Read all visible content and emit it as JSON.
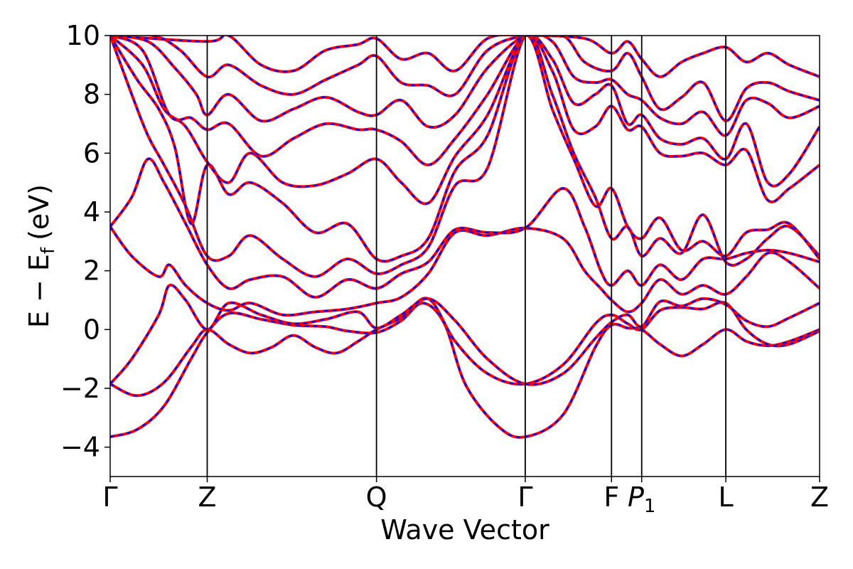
{
  "chart_data": {
    "type": "line",
    "title": "",
    "xlabel": "Wave Vector",
    "ylabel": "E − E",
    "ylabel_subscript": "f",
    "ylabel_unit": "(eV)",
    "ylim": [
      -5,
      10
    ],
    "yticks": [
      -4,
      -2,
      0,
      2,
      4,
      6,
      8,
      10
    ],
    "ytick_labels": [
      "−4",
      "−2",
      "0",
      "2",
      "4",
      "6",
      "8",
      "10"
    ],
    "xlim": [
      0,
      6.58
    ],
    "kpoints": [
      {
        "label": "Γ",
        "sub": "",
        "x": 0.0
      },
      {
        "label": "Z",
        "sub": "",
        "x": 0.9
      },
      {
        "label": "Q",
        "sub": "",
        "x": 2.47
      },
      {
        "label": "Γ",
        "sub": "",
        "x": 3.85
      },
      {
        "label": "F",
        "sub": "",
        "x": 4.65
      },
      {
        "label": "P",
        "sub": "1",
        "x": 4.93
      },
      {
        "label": "L",
        "sub": "",
        "x": 5.71
      },
      {
        "label": "Z",
        "sub": "",
        "x": 6.58
      }
    ],
    "legend": "none",
    "grid": false,
    "series_styles": [
      {
        "color": "#ff0000",
        "style": "solid"
      },
      {
        "color": "#0000ff",
        "style": "dashed"
      }
    ],
    "bands": [
      [
        [
          0,
          -3.65
        ],
        [
          0.25,
          -3.4
        ],
        [
          0.5,
          -2.6
        ],
        [
          0.75,
          -1.0
        ],
        [
          0.9,
          -0.1
        ],
        [
          1.1,
          0.55
        ],
        [
          1.4,
          0.35
        ],
        [
          1.7,
          0.15
        ],
        [
          2.0,
          0.1
        ],
        [
          2.2,
          -0.05
        ],
        [
          2.47,
          -0.1
        ],
        [
          2.7,
          0.3
        ],
        [
          2.9,
          0.9
        ],
        [
          3.1,
          0.2
        ],
        [
          3.3,
          -1.9
        ],
        [
          3.6,
          -3.3
        ],
        [
          3.85,
          -3.65
        ],
        [
          4.2,
          -2.9
        ],
        [
          4.5,
          -0.6
        ],
        [
          4.65,
          0.15
        ],
        [
          4.8,
          0.05
        ],
        [
          4.93,
          0.0
        ],
        [
          5.1,
          -0.5
        ],
        [
          5.3,
          -0.9
        ],
        [
          5.5,
          -0.5
        ],
        [
          5.71,
          0.0
        ],
        [
          5.9,
          -0.4
        ],
        [
          6.1,
          -0.55
        ],
        [
          6.3,
          -0.4
        ],
        [
          6.58,
          0.0
        ]
      ],
      [
        [
          0,
          -1.85
        ],
        [
          0.25,
          -2.25
        ],
        [
          0.5,
          -1.8
        ],
        [
          0.75,
          -0.6
        ],
        [
          0.9,
          0.0
        ],
        [
          1.1,
          -0.5
        ],
        [
          1.3,
          -0.8
        ],
        [
          1.5,
          -0.6
        ],
        [
          1.7,
          -0.2
        ],
        [
          1.9,
          -0.6
        ],
        [
          2.1,
          -0.8
        ],
        [
          2.3,
          -0.4
        ],
        [
          2.47,
          0.0
        ],
        [
          2.7,
          0.4
        ],
        [
          2.95,
          1.05
        ],
        [
          3.2,
          -0.4
        ],
        [
          3.5,
          -1.5
        ],
        [
          3.85,
          -1.85
        ],
        [
          4.2,
          -1.2
        ],
        [
          4.5,
          0.2
        ],
        [
          4.65,
          0.5
        ],
        [
          4.8,
          0.2
        ],
        [
          4.93,
          0.0
        ],
        [
          5.1,
          0.65
        ],
        [
          5.3,
          0.75
        ],
        [
          5.5,
          0.7
        ],
        [
          5.71,
          0.9
        ],
        [
          5.9,
          0.0
        ],
        [
          6.1,
          -0.5
        ],
        [
          6.3,
          -0.5
        ],
        [
          6.58,
          -0.05
        ]
      ],
      [
        [
          0,
          -1.85
        ],
        [
          0.2,
          -1.0
        ],
        [
          0.45,
          0.5
        ],
        [
          0.55,
          1.5
        ],
        [
          0.7,
          1.0
        ],
        [
          0.9,
          0.0
        ],
        [
          1.1,
          0.9
        ],
        [
          1.4,
          0.5
        ],
        [
          1.7,
          0.2
        ],
        [
          2.0,
          0.35
        ],
        [
          2.3,
          0.6
        ],
        [
          2.47,
          0.05
        ],
        [
          2.7,
          0.5
        ],
        [
          2.95,
          1.05
        ],
        [
          3.2,
          0.3
        ],
        [
          3.5,
          -1.0
        ],
        [
          3.85,
          -1.85
        ],
        [
          4.2,
          -1.5
        ],
        [
          4.5,
          -0.3
        ],
        [
          4.65,
          0.25
        ],
        [
          4.8,
          0.5
        ],
        [
          4.93,
          0.1
        ],
        [
          5.1,
          0.95
        ],
        [
          5.3,
          0.8
        ],
        [
          5.5,
          1.05
        ],
        [
          5.71,
          0.85
        ],
        [
          5.9,
          0.3
        ],
        [
          6.1,
          0.1
        ],
        [
          6.3,
          0.4
        ],
        [
          6.58,
          0.9
        ]
      ],
      [
        [
          0,
          3.5
        ],
        [
          0.2,
          2.5
        ],
        [
          0.45,
          1.8
        ],
        [
          0.55,
          2.2
        ],
        [
          0.7,
          1.5
        ],
        [
          0.9,
          0.9
        ],
        [
          1.1,
          0.65
        ],
        [
          1.3,
          0.9
        ],
        [
          1.6,
          0.5
        ],
        [
          1.9,
          0.6
        ],
        [
          2.2,
          0.7
        ],
        [
          2.47,
          0.9
        ],
        [
          2.7,
          1.1
        ],
        [
          2.95,
          1.9
        ],
        [
          3.2,
          3.3
        ],
        [
          3.5,
          3.2
        ],
        [
          3.85,
          3.45
        ],
        [
          4.2,
          3.1
        ],
        [
          4.4,
          2.0
        ],
        [
          4.55,
          1.4
        ],
        [
          4.65,
          1.0
        ],
        [
          4.8,
          0.6
        ],
        [
          4.93,
          0.9
        ],
        [
          5.1,
          1.7
        ],
        [
          5.3,
          1.2
        ],
        [
          5.5,
          1.5
        ],
        [
          5.71,
          1.2
        ],
        [
          5.9,
          1.8
        ],
        [
          6.1,
          2.6
        ],
        [
          6.3,
          2.3
        ],
        [
          6.58,
          1.4
        ]
      ],
      [
        [
          0,
          3.5
        ],
        [
          0.2,
          4.5
        ],
        [
          0.35,
          5.8
        ],
        [
          0.5,
          5.0
        ],
        [
          0.7,
          3.6
        ],
        [
          0.9,
          2.2
        ],
        [
          1.1,
          1.4
        ],
        [
          1.3,
          1.7
        ],
        [
          1.6,
          1.8
        ],
        [
          1.9,
          1.1
        ],
        [
          2.2,
          1.7
        ],
        [
          2.47,
          1.4
        ],
        [
          2.7,
          1.9
        ],
        [
          2.95,
          2.3
        ],
        [
          3.2,
          3.4
        ],
        [
          3.5,
          3.3
        ],
        [
          3.85,
          3.45
        ],
        [
          4.2,
          4.8
        ],
        [
          4.4,
          3.5
        ],
        [
          4.55,
          2.0
        ],
        [
          4.65,
          1.5
        ],
        [
          4.8,
          2.0
        ],
        [
          4.93,
          1.5
        ],
        [
          5.1,
          2.2
        ],
        [
          5.3,
          1.7
        ],
        [
          5.5,
          2.4
        ],
        [
          5.71,
          2.4
        ],
        [
          5.9,
          2.6
        ],
        [
          6.1,
          2.7
        ],
        [
          6.3,
          2.6
        ],
        [
          6.58,
          2.3
        ]
      ],
      [
        [
          0,
          10.0
        ],
        [
          0.2,
          8.0
        ],
        [
          0.35,
          6.6
        ],
        [
          0.5,
          5.6
        ],
        [
          0.7,
          4.2
        ],
        [
          0.9,
          2.5
        ],
        [
          1.1,
          2.5
        ],
        [
          1.3,
          3.2
        ],
        [
          1.6,
          2.4
        ],
        [
          1.9,
          1.8
        ],
        [
          2.2,
          2.4
        ],
        [
          2.47,
          1.9
        ],
        [
          2.7,
          2.2
        ],
        [
          2.95,
          2.8
        ],
        [
          3.2,
          4.9
        ],
        [
          3.5,
          5.5
        ],
        [
          3.85,
          10.0
        ],
        [
          4.1,
          8.0
        ],
        [
          4.3,
          6.0
        ],
        [
          4.5,
          4.5
        ],
        [
          4.65,
          3.1
        ],
        [
          4.8,
          3.5
        ],
        [
          4.93,
          2.5
        ],
        [
          5.1,
          3.1
        ],
        [
          5.3,
          2.6
        ],
        [
          5.5,
          3.9
        ],
        [
          5.71,
          2.3
        ],
        [
          5.9,
          2.4
        ],
        [
          6.1,
          3.1
        ],
        [
          6.3,
          3.5
        ],
        [
          6.58,
          2.5
        ]
      ],
      [
        [
          0,
          10.0
        ],
        [
          0.25,
          8.5
        ],
        [
          0.45,
          7.5
        ],
        [
          0.6,
          6.2
        ],
        [
          0.75,
          3.6
        ],
        [
          0.9,
          5.6
        ],
        [
          1.1,
          4.6
        ],
        [
          1.3,
          5.0
        ],
        [
          1.6,
          4.3
        ],
        [
          1.9,
          3.3
        ],
        [
          2.2,
          3.6
        ],
        [
          2.47,
          2.4
        ],
        [
          2.7,
          2.5
        ],
        [
          2.95,
          3.1
        ],
        [
          3.2,
          5.4
        ],
        [
          3.5,
          6.6
        ],
        [
          3.85,
          10.0
        ],
        [
          4.1,
          7.5
        ],
        [
          4.3,
          5.8
        ],
        [
          4.5,
          4.2
        ],
        [
          4.65,
          4.8
        ],
        [
          4.8,
          3.5
        ],
        [
          4.93,
          3.1
        ],
        [
          5.1,
          3.8
        ],
        [
          5.3,
          2.7
        ],
        [
          5.5,
          3.0
        ],
        [
          5.71,
          2.5
        ],
        [
          5.9,
          3.3
        ],
        [
          6.1,
          3.4
        ],
        [
          6.3,
          3.6
        ],
        [
          6.58,
          2.4
        ]
      ],
      [
        [
          0,
          10.0
        ],
        [
          0.3,
          9.0
        ],
        [
          0.5,
          7.5
        ],
        [
          0.7,
          6.9
        ],
        [
          0.9,
          5.7
        ],
        [
          1.1,
          5.0
        ],
        [
          1.3,
          6.0
        ],
        [
          1.6,
          5.0
        ],
        [
          1.9,
          4.9
        ],
        [
          2.2,
          5.3
        ],
        [
          2.47,
          5.8
        ],
        [
          2.7,
          5.0
        ],
        [
          2.95,
          4.3
        ],
        [
          3.2,
          5.9
        ],
        [
          3.5,
          7.3
        ],
        [
          3.85,
          10.0
        ],
        [
          4.1,
          8.8
        ],
        [
          4.3,
          6.8
        ],
        [
          4.5,
          6.9
        ],
        [
          4.65,
          7.6
        ],
        [
          4.8,
          6.8
        ],
        [
          4.93,
          6.9
        ],
        [
          5.1,
          6.0
        ],
        [
          5.3,
          5.9
        ],
        [
          5.5,
          6.0
        ],
        [
          5.71,
          5.6
        ],
        [
          5.9,
          6.1
        ],
        [
          6.1,
          4.4
        ],
        [
          6.3,
          4.8
        ],
        [
          6.58,
          5.6
        ]
      ],
      [
        [
          0,
          10.0
        ],
        [
          0.3,
          9.5
        ],
        [
          0.55,
          7.3
        ],
        [
          0.75,
          7.2
        ],
        [
          0.9,
          6.8
        ],
        [
          1.1,
          7.0
        ],
        [
          1.4,
          5.9
        ],
        [
          1.7,
          6.5
        ],
        [
          2.0,
          7.0
        ],
        [
          2.3,
          6.8
        ],
        [
          2.47,
          6.8
        ],
        [
          2.7,
          6.4
        ],
        [
          2.95,
          5.6
        ],
        [
          3.2,
          6.5
        ],
        [
          3.5,
          8.0
        ],
        [
          3.85,
          10.0
        ],
        [
          4.1,
          9.2
        ],
        [
          4.3,
          7.7
        ],
        [
          4.5,
          8.0
        ],
        [
          4.65,
          8.3
        ],
        [
          4.8,
          7.0
        ],
        [
          4.93,
          7.3
        ],
        [
          5.1,
          6.5
        ],
        [
          5.3,
          6.3
        ],
        [
          5.5,
          6.5
        ],
        [
          5.71,
          5.8
        ],
        [
          5.9,
          7.0
        ],
        [
          6.1,
          5.0
        ],
        [
          6.3,
          5.3
        ],
        [
          6.58,
          6.9
        ]
      ],
      [
        [
          0,
          10.0
        ],
        [
          0.35,
          9.8
        ],
        [
          0.6,
          8.9
        ],
        [
          0.8,
          8.0
        ],
        [
          0.9,
          7.3
        ],
        [
          1.1,
          8.0
        ],
        [
          1.4,
          7.1
        ],
        [
          1.7,
          7.5
        ],
        [
          2.0,
          7.9
        ],
        [
          2.3,
          7.4
        ],
        [
          2.47,
          7.3
        ],
        [
          2.7,
          7.8
        ],
        [
          2.95,
          6.9
        ],
        [
          3.2,
          7.3
        ],
        [
          3.5,
          8.9
        ],
        [
          3.85,
          10.0
        ],
        [
          4.1,
          9.8
        ],
        [
          4.3,
          8.6
        ],
        [
          4.5,
          8.4
        ],
        [
          4.65,
          8.5
        ],
        [
          4.8,
          8.0
        ],
        [
          4.93,
          7.8
        ],
        [
          5.1,
          7.2
        ],
        [
          5.3,
          7.0
        ],
        [
          5.5,
          7.4
        ],
        [
          5.71,
          6.6
        ],
        [
          5.9,
          7.8
        ],
        [
          6.1,
          7.7
        ],
        [
          6.3,
          7.2
        ],
        [
          6.58,
          7.6
        ]
      ],
      [
        [
          0,
          10.0
        ],
        [
          0.4,
          10.0
        ],
        [
          0.65,
          9.5
        ],
        [
          0.9,
          8.6
        ],
        [
          1.1,
          9.0
        ],
        [
          1.4,
          8.3
        ],
        [
          1.7,
          8.0
        ],
        [
          2.0,
          8.5
        ],
        [
          2.3,
          9.0
        ],
        [
          2.47,
          9.3
        ],
        [
          2.7,
          8.4
        ],
        [
          2.95,
          8.3
        ],
        [
          3.2,
          8.0
        ],
        [
          3.5,
          9.5
        ],
        [
          3.85,
          10.0
        ],
        [
          4.2,
          10.0
        ],
        [
          4.4,
          9.1
        ],
        [
          4.65,
          8.8
        ],
        [
          4.8,
          9.4
        ],
        [
          4.93,
          8.6
        ],
        [
          5.1,
          7.5
        ],
        [
          5.3,
          7.9
        ],
        [
          5.5,
          8.4
        ],
        [
          5.71,
          7.1
        ],
        [
          5.9,
          8.2
        ],
        [
          6.1,
          8.4
        ],
        [
          6.3,
          8.1
        ],
        [
          6.58,
          7.8
        ]
      ],
      [
        [
          0,
          10.0
        ],
        [
          0.9,
          9.8
        ],
        [
          1.1,
          10.0
        ],
        [
          1.4,
          9.0
        ],
        [
          1.7,
          8.8
        ],
        [
          2.0,
          9.5
        ],
        [
          2.3,
          9.7
        ],
        [
          2.47,
          9.9
        ],
        [
          2.7,
          9.2
        ],
        [
          2.95,
          9.4
        ],
        [
          3.2,
          8.8
        ],
        [
          3.5,
          9.9
        ],
        [
          3.85,
          10.0
        ],
        [
          4.4,
          9.9
        ],
        [
          4.65,
          9.4
        ],
        [
          4.8,
          9.8
        ],
        [
          4.93,
          9.2
        ],
        [
          5.1,
          8.6
        ],
        [
          5.3,
          9.1
        ],
        [
          5.5,
          9.4
        ],
        [
          5.71,
          9.6
        ],
        [
          5.9,
          9.1
        ],
        [
          6.1,
          9.4
        ],
        [
          6.3,
          9.0
        ],
        [
          6.58,
          8.6
        ]
      ]
    ]
  }
}
